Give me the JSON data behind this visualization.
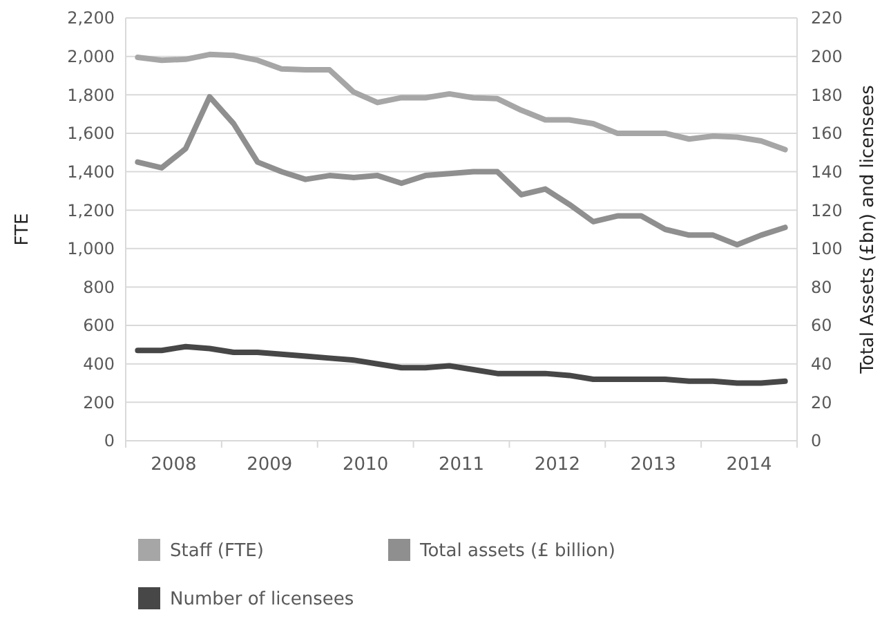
{
  "chart_data": {
    "type": "line",
    "ylabel": "FTE",
    "y2label": "Total Assets (£bn) and licensees",
    "x": [
      2008.125,
      2008.375,
      2008.625,
      2008.875,
      2009.125,
      2009.375,
      2009.625,
      2009.875,
      2010.125,
      2010.375,
      2010.625,
      2010.875,
      2011.125,
      2011.375,
      2011.625,
      2011.875,
      2012.125,
      2012.375,
      2012.625,
      2012.875,
      2013.125,
      2013.375,
      2013.625,
      2013.875,
      2014.125,
      2014.375,
      2014.625,
      2014.875
    ],
    "series": [
      {
        "name": "Staff (FTE)",
        "color": "#a6a6a6",
        "values": [
          1995,
          1980,
          1985,
          2010,
          2005,
          1980,
          1935,
          1930,
          1930,
          1815,
          1760,
          1785,
          1785,
          1805,
          1785,
          1780,
          1720,
          1670,
          1670,
          1650,
          1600,
          1600,
          1600,
          1570,
          1585,
          1580,
          1560,
          1515
        ]
      },
      {
        "name": "Total assets (£ billion)",
        "color": "#8f8f8f",
        "axis": "y2",
        "values": [
          145,
          142,
          152,
          179,
          165,
          145,
          140,
          136,
          138,
          137,
          138,
          134,
          138,
          139,
          140,
          140,
          128,
          131,
          123,
          114,
          117,
          117,
          110,
          107,
          107,
          102,
          107,
          111
        ]
      },
      {
        "name": "Number of licensees",
        "color": "#474747",
        "axis": "y2",
        "values": [
          47,
          47,
          49,
          48,
          46,
          46,
          45,
          44,
          43,
          42,
          40,
          38,
          38,
          39,
          37,
          35,
          35,
          35,
          34,
          32,
          32,
          32,
          32,
          31,
          31,
          30,
          30,
          31
        ]
      }
    ],
    "xlim": [
      2008,
      2015
    ],
    "xticks": [
      {
        "value": 2008,
        "label": null
      },
      {
        "value": 2008.5,
        "label": "2008"
      },
      {
        "value": 2009,
        "label": null
      },
      {
        "value": 2009.5,
        "label": "2009"
      },
      {
        "value": 2010,
        "label": null
      },
      {
        "value": 2010.5,
        "label": "2010"
      },
      {
        "value": 2011,
        "label": null
      },
      {
        "value": 2011.5,
        "label": "2011"
      },
      {
        "value": 2012,
        "label": null
      },
      {
        "value": 2012.5,
        "label": "2012"
      },
      {
        "value": 2013,
        "label": null
      },
      {
        "value": 2013.5,
        "label": "2013"
      },
      {
        "value": 2014,
        "label": null
      },
      {
        "value": 2014.5,
        "label": "2014"
      },
      {
        "value": 2015,
        "label": null
      }
    ],
    "ylim": [
      0,
      2200
    ],
    "yticks": [
      0,
      200,
      400,
      600,
      800,
      {
        "value": 1000,
        "label": "1,000"
      },
      {
        "value": 1200,
        "label": "1,200"
      },
      {
        "value": 1400,
        "label": "1,400"
      },
      {
        "value": 1600,
        "label": "1,600"
      },
      {
        "value": 1800,
        "label": "1,800"
      },
      {
        "value": 2000,
        "label": "2,000"
      },
      {
        "value": 2200,
        "label": "2,200"
      }
    ],
    "y2lim": [
      0,
      220
    ],
    "y2ticks": [
      0,
      20,
      40,
      60,
      80,
      100,
      120,
      140,
      160,
      180,
      200,
      220
    ],
    "grid": "y",
    "legend": "bottom",
    "marker": "none",
    "line_style": "solid"
  }
}
